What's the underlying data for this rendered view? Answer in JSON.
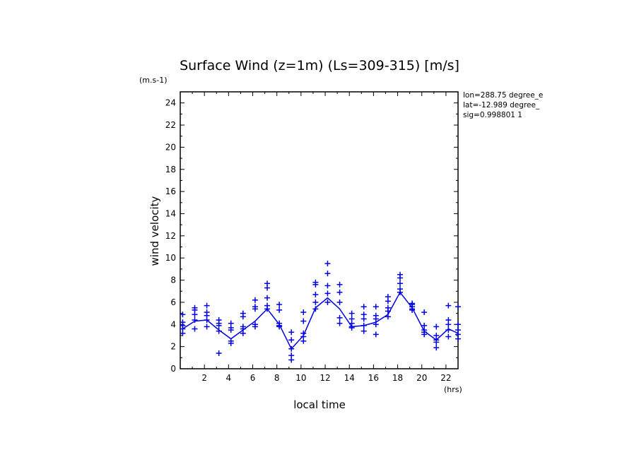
{
  "chart_data": {
    "type": "line",
    "title": "Surface Wind (z=1m) (Ls=309-315) [m/s]",
    "yunit": "(m.s-1)",
    "xunit": "(hrs)",
    "xlabel": "local time",
    "ylabel": "wind velocity",
    "xlim": [
      0,
      23
    ],
    "ylim": [
      0,
      25
    ],
    "xticks": [
      "2",
      "4",
      "6",
      "8",
      "10",
      "12",
      "14",
      "16",
      "18",
      "20",
      "22"
    ],
    "yticks": [
      "0",
      "2",
      "4",
      "6",
      "8",
      "10",
      "12",
      "14",
      "16",
      "18",
      "20",
      "22",
      "24"
    ],
    "info_lines": [
      "lon=288.75 degree_e",
      "lat=-12.989 degree_",
      "sig=0.998801 1"
    ],
    "line_color": "#0000e6",
    "series": [
      {
        "x": [
          0.2,
          1.2,
          2.2,
          3.2,
          4.2,
          5.2,
          6.2,
          7.2,
          8.2,
          9.2,
          10.2,
          11.2,
          12.2,
          13.2,
          14.2,
          15.2,
          16.2,
          17.2,
          18.2,
          19.2,
          20.2,
          21.2,
          22.2,
          23.0
        ],
        "values": [
          3.6,
          4.3,
          4.4,
          3.5,
          2.7,
          3.5,
          4.3,
          5.4,
          4.0,
          1.8,
          3.0,
          5.5,
          6.4,
          5.4,
          3.8,
          3.9,
          4.2,
          4.9,
          6.9,
          5.5,
          3.4,
          2.6,
          3.6,
          3.2
        ]
      }
    ],
    "scatter": [
      {
        "x": 0.2,
        "values": [
          4.9,
          4.2,
          3.9,
          3.6,
          3.2
        ]
      },
      {
        "x": 1.2,
        "values": [
          5.5,
          5.3,
          4.9,
          4.4,
          3.6
        ]
      },
      {
        "x": 2.2,
        "values": [
          5.7,
          5.1,
          4.8,
          4.4,
          3.8
        ]
      },
      {
        "x": 3.2,
        "values": [
          4.4,
          4.1,
          3.9,
          3.4,
          1.4
        ]
      },
      {
        "x": 4.2,
        "values": [
          4.1,
          3.7,
          3.5,
          2.5,
          2.3
        ]
      },
      {
        "x": 5.2,
        "values": [
          5.0,
          4.7,
          3.8,
          3.6,
          3.2
        ]
      },
      {
        "x": 6.2,
        "values": [
          6.2,
          5.6,
          5.4,
          4.0,
          3.8
        ]
      },
      {
        "x": 7.2,
        "values": [
          7.7,
          7.3,
          6.4,
          5.7,
          5.4
        ]
      },
      {
        "x": 8.2,
        "values": [
          5.8,
          5.3,
          4.1,
          3.9,
          3.8
        ]
      },
      {
        "x": 9.2,
        "values": [
          3.3,
          2.6,
          1.8,
          1.2,
          0.8
        ]
      },
      {
        "x": 10.2,
        "values": [
          5.1,
          4.3,
          3.2,
          2.9,
          2.5
        ]
      },
      {
        "x": 11.2,
        "values": [
          7.8,
          7.6,
          6.7,
          6.0,
          5.4
        ]
      },
      {
        "x": 12.2,
        "values": [
          9.5,
          8.6,
          7.5,
          6.8,
          6.0
        ]
      },
      {
        "x": 13.2,
        "values": [
          7.6,
          6.9,
          6.0,
          4.6,
          4.1
        ]
      },
      {
        "x": 14.2,
        "values": [
          5.0,
          4.5,
          4.1,
          3.8,
          3.7
        ]
      },
      {
        "x": 15.2,
        "values": [
          5.6,
          4.9,
          4.5,
          3.9,
          3.4
        ]
      },
      {
        "x": 16.2,
        "values": [
          5.6,
          4.8,
          4.5,
          4.0,
          3.1
        ]
      },
      {
        "x": 17.2,
        "values": [
          6.5,
          6.1,
          5.5,
          5.2,
          4.7
        ]
      },
      {
        "x": 18.2,
        "values": [
          8.5,
          8.2,
          7.7,
          7.2,
          6.9
        ]
      },
      {
        "x": 19.2,
        "values": [
          5.9,
          5.8,
          5.6,
          5.4,
          5.3
        ]
      },
      {
        "x": 20.2,
        "values": [
          5.1,
          3.9,
          3.5,
          3.3,
          3.1
        ]
      },
      {
        "x": 21.2,
        "values": [
          3.8,
          3.0,
          2.6,
          2.4,
          1.9
        ]
      },
      {
        "x": 22.2,
        "values": [
          5.7,
          4.4,
          4.0,
          3.5,
          2.9
        ]
      },
      {
        "x": 23.0,
        "values": [
          5.6,
          4.0,
          3.5,
          3.1,
          2.7
        ]
      }
    ]
  }
}
